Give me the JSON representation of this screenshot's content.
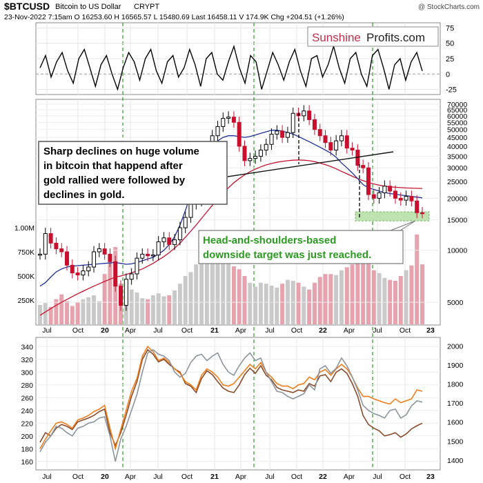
{
  "header": {
    "symbol": "$BTCUSD",
    "name": "Bitcoin to US Dollar",
    "exchange": "CRYPT",
    "watermark": "@ StockCharts.com",
    "quote": "23-Nov-2022 7:15am    O 16253.60   H 16565.57   L 15480.69   Last 16458.11   V 174.9K   Chg +204.51 (+1.26%)"
  },
  "logo": {
    "part1": "Sunshine",
    "part2": "Profits.com",
    "part1_color": "#c0304a",
    "part2_color": "#222222"
  },
  "annotations": {
    "left_box": [
      "Sharp declines on huge volume",
      "in bitcoin that happend after",
      "gold rallied were followed by",
      "declines in gold."
    ],
    "right_box": [
      "Head-and-shoulders-based",
      "downside target was just reached."
    ],
    "right_box_color": "#2a9a20"
  },
  "x_axis_labels": [
    "Jul",
    "Oct",
    "20",
    "Apr",
    "Jul",
    "Oct",
    "21",
    "Apr",
    "Jul",
    "Oct",
    "22",
    "Apr",
    "Jul",
    "Oct",
    "23"
  ],
  "colors": {
    "up": "#000000",
    "down": "#c8102e",
    "ma_blue": "#1f2f9a",
    "ma_red": "#c8102e",
    "guide_green": "#2a9a20",
    "target_zone": "#bfe3b0",
    "gold": "#8a4a2a",
    "gold_alt": "#ef7d1a",
    "silver": "#8c949c"
  },
  "chart_data": [
    {
      "type": "line",
      "panel": "oscillator",
      "y_ticks": [
        -25,
        0,
        25,
        50,
        75
      ],
      "ylim": [
        -30,
        80
      ],
      "x_ticks": [
        "Jul",
        "Oct",
        "20",
        "Apr",
        "Jul",
        "Oct",
        "21",
        "Apr",
        "Jul",
        "Oct",
        "22",
        "Apr",
        "Jul",
        "Oct",
        "23"
      ],
      "series": [
        {
          "values": [
            10,
            30,
            -5,
            20,
            35,
            5,
            -15,
            25,
            40,
            10,
            -20,
            15,
            30,
            0,
            -25,
            10,
            35,
            20,
            -10,
            25,
            40,
            5,
            -15,
            20,
            30,
            -5,
            10,
            40,
            15,
            -20,
            25,
            35,
            0,
            -10,
            20,
            45,
            10,
            -15,
            30,
            20,
            -25,
            5,
            35,
            15,
            -10,
            20,
            40,
            5,
            -20,
            25,
            30,
            -5,
            15,
            45,
            10,
            -15,
            25,
            35,
            0,
            -20,
            30,
            40,
            10,
            -25,
            15,
            25,
            -10,
            20,
            35,
            5
          ]
        }
      ]
    },
    {
      "type": "line",
      "panel": "price",
      "yscale": "log",
      "ylim": [
        3800,
        72000
      ],
      "y_ticks": [
        5000,
        10000,
        15000,
        20000,
        25000,
        30000,
        35000,
        40000,
        45000,
        50000,
        55000,
        60000,
        65000,
        70000
      ],
      "volume_ticks": [
        "250K",
        "500K",
        "750K",
        "1.00M"
      ],
      "x_ticks": [
        "Jul",
        "Oct",
        "20",
        "Apr",
        "Jul",
        "Oct",
        "21",
        "Apr",
        "Jul",
        "Oct",
        "22",
        "Apr",
        "Jul",
        "Oct",
        "23"
      ],
      "series": [
        {
          "name": "",
          "values": [
            9500,
            12500,
            11000,
            10200,
            9800,
            8200,
            7400,
            7200,
            7600,
            8000,
            9800,
            10200,
            9500,
            8600,
            6200,
            4800,
            6800,
            7300,
            9000,
            9500,
            9300,
            9400,
            11200,
            11800,
            10800,
            11500,
            13500,
            15500,
            18500,
            19300,
            24000,
            33000,
            46000,
            52000,
            58000,
            59000,
            55000,
            40000,
            33000,
            34000,
            35000,
            38000,
            41000,
            47000,
            49000,
            45000,
            48000,
            62000,
            60000,
            64000,
            57000,
            50000,
            46000,
            42000,
            38000,
            43000,
            46000,
            39000,
            38000,
            31000,
            30000,
            21000,
            20000,
            21500,
            23500,
            22000,
            20000,
            19500,
            20500,
            19300,
            16500,
            16458
          ]
        },
        {
          "name": "",
          "values": [
            6200,
            6500,
            7000,
            7500,
            7800,
            8000,
            8100,
            8150,
            8200,
            8250,
            8300,
            8350,
            8400,
            8450,
            8500,
            8400,
            8300,
            8350,
            8500,
            8700,
            8900,
            9100,
            9500,
            10000,
            10800,
            12000,
            14000,
            17000,
            21000,
            26000,
            31000,
            36000,
            40000,
            43000,
            45000,
            46000,
            46000,
            45500,
            45000,
            45500,
            46500,
            47500,
            48500,
            49500,
            49500,
            49000,
            48000,
            47000,
            45500,
            44000,
            42500,
            41000,
            39500,
            38000,
            36500,
            34500,
            32000,
            30000,
            28000,
            26000,
            24000,
            23000,
            22500,
            22000,
            21600,
            21300,
            21100,
            20900,
            20700,
            20500,
            20300,
            20100
          ]
        },
        {
          "name": "",
          "values": [
            4200,
            4400,
            4600,
            4800,
            5000,
            5200,
            5400,
            5600,
            5800,
            6000,
            6200,
            6400,
            6600,
            6800,
            7000,
            7100,
            7250,
            7400,
            7600,
            7800,
            8100,
            8400,
            8800,
            9200,
            9700,
            10300,
            11000,
            11900,
            12900,
            14000,
            15300,
            16700,
            18200,
            19800,
            21400,
            23000,
            24600,
            26000,
            27300,
            28500,
            29500,
            30400,
            31200,
            31800,
            32300,
            32700,
            33000,
            33200,
            33300,
            33200,
            33000,
            32600,
            32000,
            31300,
            30500,
            29600,
            28600,
            27700,
            26800,
            26000,
            25300,
            24700,
            24200,
            23800,
            23500,
            23300,
            23150,
            23050,
            22950,
            22900,
            22850,
            22800
          ]
        },
        {
          "name": "",
          "values": [
            200,
            220,
            180,
            260,
            310,
            240,
            190,
            230,
            260,
            280,
            300,
            240,
            520,
            700,
            800,
            420,
            300,
            360,
            330,
            270,
            260,
            300,
            320,
            290,
            300,
            350,
            420,
            500,
            540,
            620,
            750,
            900,
            860,
            760,
            700,
            660,
            600,
            570,
            500,
            430,
            390,
            430,
            420,
            400,
            380,
            420,
            460,
            450,
            430,
            390,
            360,
            430,
            490,
            520,
            520,
            510,
            560,
            590,
            620,
            680,
            760,
            690,
            560,
            530,
            480,
            460,
            450,
            500,
            560,
            610,
            930,
            620
          ]
        }
      ]
    },
    {
      "type": "line",
      "panel": "metals",
      "left_ticks": [
        160,
        180,
        200,
        220,
        240,
        260,
        280,
        300,
        320,
        340
      ],
      "right_ticks": [
        1400,
        1500,
        1600,
        1700,
        1800,
        1900,
        2000
      ],
      "ylim": [
        150,
        350
      ],
      "x_ticks": [
        "Jul",
        "Oct",
        "20",
        "Apr",
        "Jul",
        "Oct",
        "21",
        "Apr",
        "Jul",
        "Oct",
        "22",
        "Apr",
        "Jul",
        "Oct",
        "23"
      ],
      "series": [
        {
          "name": "",
          "values": [
            190,
            205,
            200,
            212,
            218,
            215,
            210,
            222,
            225,
            228,
            232,
            238,
            242,
            205,
            185,
            205,
            232,
            262,
            285,
            320,
            335,
            328,
            316,
            320,
            312,
            305,
            300,
            282,
            278,
            268,
            290,
            302,
            296,
            285,
            275,
            270,
            268,
            280,
            296,
            306,
            298,
            310,
            295,
            288,
            276,
            272,
            270,
            268,
            272,
            270,
            282,
            278,
            294,
            296,
            285,
            300,
            305,
            298,
            282,
            262,
            232,
            218,
            212,
            208,
            200,
            202,
            205,
            198,
            203,
            211,
            216,
            220
          ]
        },
        {
          "name": "",
          "values": [
            180,
            195,
            208,
            220,
            222,
            218,
            212,
            225,
            228,
            232,
            238,
            242,
            248,
            212,
            180,
            210,
            240,
            270,
            290,
            325,
            340,
            332,
            318,
            322,
            315,
            305,
            298,
            285,
            280,
            272,
            295,
            305,
            300,
            292,
            280,
            278,
            282,
            292,
            302,
            312,
            305,
            315,
            300,
            292,
            282,
            278,
            278,
            274,
            280,
            282,
            292,
            288,
            300,
            304,
            295,
            305,
            312,
            305,
            292,
            275,
            262,
            262,
            258,
            255,
            252,
            250,
            258,
            252,
            255,
            258,
            272,
            270
          ]
        },
        {
          "name": "",
          "values": [
            175,
            190,
            200,
            215,
            212,
            205,
            200,
            212,
            215,
            220,
            222,
            228,
            230,
            200,
            160,
            195,
            215,
            240,
            265,
            300,
            330,
            335,
            328,
            325,
            318,
            300,
            292,
            298,
            315,
            325,
            328,
            318,
            325,
            330,
            312,
            300,
            295,
            310,
            322,
            330,
            318,
            322,
            300,
            285,
            270,
            268,
            262,
            258,
            262,
            266,
            280,
            272,
            305,
            310,
            298,
            306,
            322,
            310,
            292,
            272,
            248,
            240,
            235,
            232,
            228,
            240,
            242,
            228,
            233,
            247,
            255,
            253
          ]
        }
      ]
    }
  ]
}
